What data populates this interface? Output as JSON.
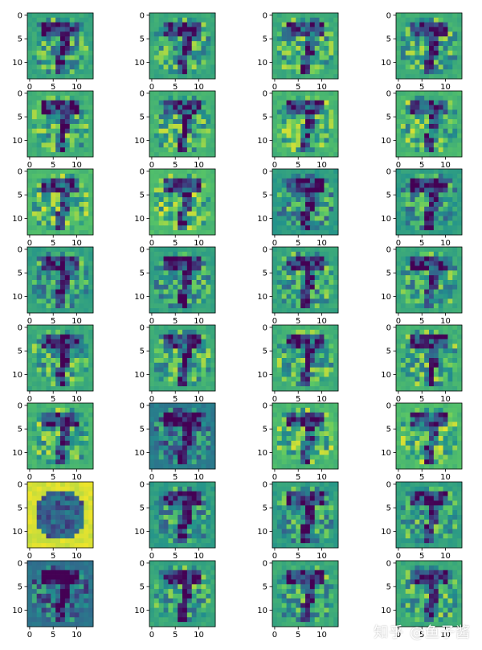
{
  "chart_data": {
    "type": "heatmap",
    "title": "",
    "grid": false,
    "colormap": "viridis",
    "colormap_stops": [
      "#440154",
      "#3b528b",
      "#21908d",
      "#5dc963",
      "#fde725"
    ],
    "layout": {
      "rows": 8,
      "cols": 4,
      "panel_count": 32
    },
    "image_size": [
      14,
      14
    ],
    "xticks": [
      0,
      5,
      10
    ],
    "yticks": [
      0,
      5,
      10
    ],
    "xlim": [
      -0.5,
      13.5
    ],
    "ylim": [
      13.5,
      -0.5
    ]
  },
  "watermark": {
    "text": "知乎 @鱼子酱"
  }
}
